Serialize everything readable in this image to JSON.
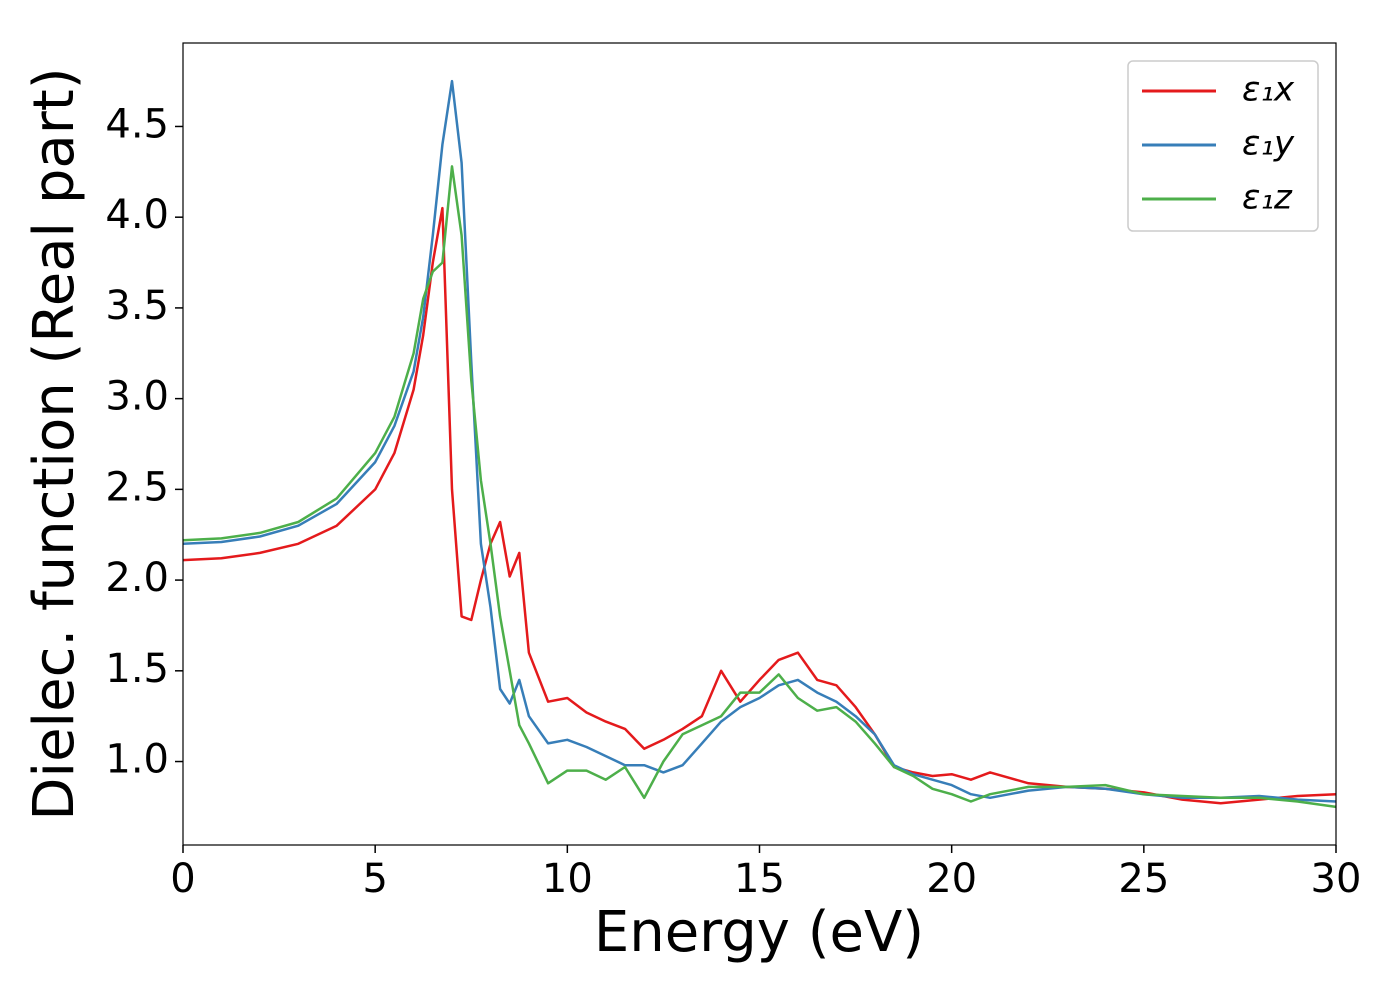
{
  "chart_data": {
    "type": "line",
    "xlabel": "Energy (eV)",
    "ylabel": "Dielec. function (Real part)",
    "x": [
      0,
      1,
      2,
      3,
      4,
      5,
      5.5,
      6,
      6.25,
      6.5,
      6.75,
      7,
      7.25,
      7.5,
      7.75,
      8,
      8.25,
      8.5,
      8.75,
      9,
      9.5,
      10,
      10.5,
      11,
      11.5,
      12,
      12.5,
      13,
      13.5,
      14,
      14.5,
      15,
      15.5,
      16,
      16.5,
      17,
      17.5,
      18,
      18.5,
      19,
      19.5,
      20,
      20.5,
      21,
      22,
      23,
      24,
      25,
      26,
      27,
      28,
      29,
      30
    ],
    "series": [
      {
        "name": "ε₁x",
        "color": "#e41a1c",
        "values": [
          2.11,
          2.12,
          2.15,
          2.2,
          2.3,
          2.5,
          2.7,
          3.05,
          3.35,
          3.75,
          4.05,
          2.5,
          1.8,
          1.78,
          2.0,
          2.2,
          2.32,
          2.02,
          2.15,
          1.6,
          1.33,
          1.35,
          1.27,
          1.22,
          1.18,
          1.07,
          1.12,
          1.18,
          1.25,
          1.5,
          1.33,
          1.45,
          1.56,
          1.6,
          1.45,
          1.42,
          1.3,
          1.15,
          0.97,
          0.94,
          0.92,
          0.93,
          0.9,
          0.94,
          0.88,
          0.86,
          0.85,
          0.83,
          0.79,
          0.77,
          0.79,
          0.81,
          0.82
        ]
      },
      {
        "name": "ε₁y",
        "color": "#377eb8",
        "values": [
          2.2,
          2.21,
          2.24,
          2.3,
          2.42,
          2.65,
          2.85,
          3.15,
          3.45,
          3.9,
          4.4,
          4.75,
          4.3,
          3.2,
          2.2,
          1.85,
          1.4,
          1.32,
          1.45,
          1.25,
          1.1,
          1.12,
          1.08,
          1.03,
          0.98,
          0.98,
          0.94,
          0.98,
          1.1,
          1.22,
          1.3,
          1.35,
          1.42,
          1.45,
          1.38,
          1.33,
          1.25,
          1.15,
          0.98,
          0.93,
          0.9,
          0.87,
          0.82,
          0.8,
          0.84,
          0.86,
          0.85,
          0.82,
          0.8,
          0.8,
          0.81,
          0.79,
          0.78
        ]
      },
      {
        "name": "ε₁z",
        "color": "#4daf4a",
        "values": [
          2.22,
          2.23,
          2.26,
          2.32,
          2.45,
          2.7,
          2.9,
          3.25,
          3.55,
          3.7,
          3.75,
          4.28,
          3.9,
          3.1,
          2.55,
          2.2,
          1.8,
          1.5,
          1.2,
          1.1,
          0.88,
          0.95,
          0.95,
          0.9,
          0.97,
          0.8,
          1.0,
          1.15,
          1.2,
          1.25,
          1.38,
          1.38,
          1.48,
          1.35,
          1.28,
          1.3,
          1.22,
          1.1,
          0.97,
          0.92,
          0.85,
          0.82,
          0.78,
          0.82,
          0.86,
          0.86,
          0.87,
          0.82,
          0.81,
          0.8,
          0.8,
          0.78,
          0.75
        ]
      }
    ],
    "xlim": [
      0,
      30
    ],
    "xticks": [
      0,
      5,
      10,
      15,
      20,
      25,
      30
    ],
    "ylim": [
      0.54,
      4.96
    ],
    "yticks": [
      {
        "value": 1,
        "label": "1.0"
      },
      1.5,
      {
        "value": 2,
        "label": "2.0"
      },
      2.5,
      {
        "value": 3,
        "label": "3.0"
      },
      3.5,
      {
        "value": 4,
        "label": "4.0"
      },
      4.5
    ],
    "legend": "upper right"
  }
}
